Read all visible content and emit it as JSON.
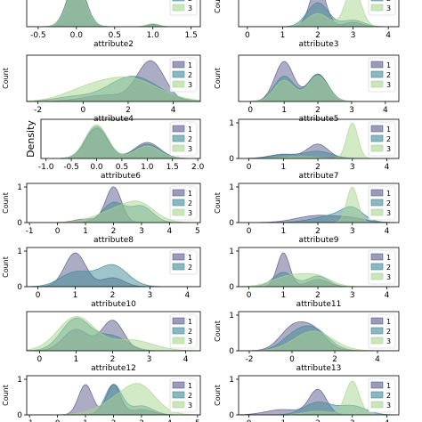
{
  "figure": {
    "colors": [
      "#5a5a8c",
      "#3f8a96",
      "#a8d68f"
    ]
  },
  "chart_data": [
    {
      "type": "area",
      "xlabel": "attribute2",
      "ylabel": "",
      "xticks": [
        "-0.5",
        "0.0",
        "0.5",
        "1.0",
        "1.5"
      ],
      "xlim": [
        -0.65,
        1.62
      ],
      "yticks": [],
      "ylim": [
        0,
        1.1
      ],
      "legend": [
        "1",
        "2",
        "3"
      ],
      "series": [
        {
          "name": "1",
          "peaks": [
            [
              0.0,
              1.05,
              0.12
            ],
            [
              1.0,
              0.05,
              0.08
            ]
          ]
        },
        {
          "name": "2",
          "peaks": [
            [
              0.0,
              1.0,
              0.12
            ],
            [
              1.0,
              0.06,
              0.08
            ]
          ]
        },
        {
          "name": "3",
          "peaks": [
            [
              0.0,
              0.95,
              0.12
            ],
            [
              1.0,
              0.07,
              0.08
            ]
          ]
        }
      ]
    },
    {
      "type": "area",
      "xlabel": "attribute3",
      "ylabel": "Count",
      "xticks": [
        "0",
        "1",
        "2",
        "3",
        "4"
      ],
      "xlim": [
        -0.25,
        4.3
      ],
      "yticks": [],
      "ylim": [
        0,
        1.1
      ],
      "legend": [
        "1",
        "2",
        "3"
      ],
      "series": [
        {
          "name": "1",
          "peaks": [
            [
              2.0,
              0.95,
              0.22
            ],
            [
              3.0,
              0.1,
              0.25
            ]
          ]
        },
        {
          "name": "2",
          "peaks": [
            [
              2.0,
              0.55,
              0.3
            ],
            [
              3.0,
              0.15,
              0.3
            ]
          ]
        },
        {
          "name": "3",
          "peaks": [
            [
              2.0,
              0.3,
              0.3
            ],
            [
              3.0,
              0.9,
              0.22
            ]
          ]
        }
      ]
    },
    {
      "type": "area",
      "xlabel": "attribute4",
      "ylabel": "Count",
      "xticks": [
        "-2",
        "0",
        "2",
        "4"
      ],
      "xlim": [
        -2.5,
        5.2
      ],
      "yticks": [],
      "ylim": [
        0,
        1.1
      ],
      "legend": [
        "1",
        "2",
        "3"
      ],
      "series": [
        {
          "name": "1",
          "peaks": [
            [
              3.0,
              0.95,
              0.6
            ],
            [
              1.0,
              0.15,
              1.0
            ]
          ]
        },
        {
          "name": "2",
          "peaks": [
            [
              2.2,
              0.6,
              1.1
            ],
            [
              -0.5,
              0.1,
              0.8
            ]
          ]
        },
        {
          "name": "3",
          "peaks": [
            [
              2.0,
              0.55,
              1.3
            ],
            [
              0.0,
              0.2,
              1.0
            ]
          ]
        }
      ]
    },
    {
      "type": "area",
      "xlabel": "attribute5",
      "ylabel": "Count",
      "xticks": [
        "0",
        "1",
        "2",
        "3",
        "4"
      ],
      "xlim": [
        -0.35,
        4.4
      ],
      "yticks": [],
      "ylim": [
        0,
        1.1
      ],
      "legend": [
        "1",
        "2",
        "3"
      ],
      "series": [
        {
          "name": "1",
          "peaks": [
            [
              1.0,
              0.95,
              0.28
            ],
            [
              2.0,
              0.65,
              0.3
            ]
          ]
        },
        {
          "name": "2",
          "peaks": [
            [
              1.0,
              0.6,
              0.3
            ],
            [
              2.0,
              0.65,
              0.3
            ]
          ]
        },
        {
          "name": "3",
          "peaks": [
            [
              1.0,
              0.5,
              0.3
            ],
            [
              2.0,
              0.6,
              0.3
            ]
          ]
        }
      ]
    },
    {
      "type": "area",
      "xlabel": "attribute6",
      "ylabel": "Density",
      "xticks": [
        "-1.0",
        "-0.5",
        "0.0",
        "0.5",
        "1.0",
        "1.5",
        "2.0"
      ],
      "xlim": [
        -1.1,
        2.05
      ],
      "yticks": [],
      "ylim": [
        0,
        1.1
      ],
      "legend": [
        "1",
        "2",
        "3"
      ],
      "series": [
        {
          "name": "1",
          "peaks": [
            [
              0.0,
              0.85,
              0.22
            ],
            [
              1.0,
              0.45,
              0.25
            ]
          ]
        },
        {
          "name": "2",
          "peaks": [
            [
              0.0,
              0.9,
              0.22
            ],
            [
              1.0,
              0.4,
              0.25
            ]
          ]
        },
        {
          "name": "3",
          "peaks": [
            [
              0.0,
              0.95,
              0.22
            ],
            [
              1.0,
              0.35,
              0.25
            ]
          ]
        }
      ]
    },
    {
      "type": "area",
      "xlabel": "attribute7",
      "ylabel": "",
      "xticks": [
        "0",
        "1",
        "2",
        "3",
        "4"
      ],
      "xlim": [
        -0.3,
        4.35
      ],
      "yticks": [
        "0",
        "1"
      ],
      "ylim": [
        0,
        1.1
      ],
      "legend": [
        "1",
        "2",
        "3"
      ],
      "series": [
        {
          "name": "1",
          "peaks": [
            [
              2.0,
              0.4,
              0.3
            ],
            [
              1.0,
              0.12,
              0.4
            ]
          ]
        },
        {
          "name": "2",
          "peaks": [
            [
              2.0,
              0.2,
              0.4
            ],
            [
              1.0,
              0.1,
              0.4
            ]
          ]
        },
        {
          "name": "3",
          "peaks": [
            [
              3.0,
              1.0,
              0.16
            ],
            [
              1.5,
              0.05,
              0.5
            ]
          ]
        }
      ]
    },
    {
      "type": "area",
      "xlabel": "attribute8",
      "ylabel": "Count",
      "xticks": [
        "-1",
        "0",
        "1",
        "2",
        "3",
        "4",
        "5"
      ],
      "xlim": [
        -1.1,
        5.1
      ],
      "yticks": [
        "0",
        "1"
      ],
      "ylim": [
        0,
        1.1
      ],
      "legend": [
        "1",
        "2",
        "3"
      ],
      "series": [
        {
          "name": "1",
          "peaks": [
            [
              2.0,
              1.0,
              0.28
            ],
            [
              1.0,
              0.1,
              0.4
            ]
          ]
        },
        {
          "name": "2",
          "peaks": [
            [
              2.0,
              0.55,
              0.4
            ],
            [
              3.0,
              0.45,
              0.4
            ]
          ]
        },
        {
          "name": "3",
          "peaks": [
            [
              2.3,
              0.4,
              0.8
            ],
            [
              3.0,
              0.3,
              0.5
            ]
          ]
        }
      ]
    },
    {
      "type": "area",
      "xlabel": "attribute9",
      "ylabel": "Count",
      "xticks": [
        "0",
        "1",
        "2",
        "3",
        "4"
      ],
      "xlim": [
        -0.3,
        4.35
      ],
      "yticks": [
        "0",
        "1"
      ],
      "ylim": [
        0,
        1.1
      ],
      "legend": [
        "1",
        "2",
        "3"
      ],
      "series": [
        {
          "name": "1",
          "peaks": [
            [
              2.0,
              0.2,
              0.6
            ],
            [
              3.0,
              0.1,
              0.4
            ]
          ]
        },
        {
          "name": "2",
          "peaks": [
            [
              2.5,
              0.2,
              0.6
            ],
            [
              3.0,
              0.3,
              0.3
            ]
          ]
        },
        {
          "name": "3",
          "peaks": [
            [
              3.0,
              1.0,
              0.16
            ]
          ]
        }
      ]
    },
    {
      "type": "area",
      "xlabel": "attribute10",
      "ylabel": "Count",
      "xticks": [
        "0",
        "1",
        "2",
        "3",
        "4"
      ],
      "xlim": [
        -0.3,
        4.35
      ],
      "yticks": [
        "0",
        "1"
      ],
      "ylim": [
        0,
        1.1
      ],
      "legend": [
        "1",
        "2"
      ],
      "series": [
        {
          "name": "1",
          "peaks": [
            [
              1.0,
              0.95,
              0.28
            ],
            [
              2.0,
              0.25,
              0.3
            ]
          ]
        },
        {
          "name": "2",
          "peaks": [
            [
              1.0,
              0.4,
              0.4
            ],
            [
              2.0,
              0.6,
              0.4
            ]
          ]
        }
      ]
    },
    {
      "type": "area",
      "xlabel": "attribute11",
      "ylabel": "",
      "xticks": [
        "0",
        "1",
        "2",
        "3",
        "4"
      ],
      "xlim": [
        -0.3,
        4.35
      ],
      "yticks": [
        "0",
        "1"
      ],
      "ylim": [
        0,
        1.1
      ],
      "legend": [
        "1",
        "2",
        "3"
      ],
      "series": [
        {
          "name": "1",
          "peaks": [
            [
              1.0,
              0.95,
              0.18
            ],
            [
              2.0,
              0.2,
              0.3
            ]
          ]
        },
        {
          "name": "2",
          "peaks": [
            [
              1.0,
              0.4,
              0.3
            ],
            [
              2.0,
              0.3,
              0.3
            ]
          ]
        },
        {
          "name": "3",
          "peaks": [
            [
              1.2,
              0.3,
              0.5
            ],
            [
              2.0,
              0.25,
              0.4
            ]
          ]
        }
      ]
    },
    {
      "type": "area",
      "xlabel": "attribute12",
      "ylabel": "",
      "xticks": [
        "0",
        "1",
        "2",
        "3",
        "4"
      ],
      "xlim": [
        -0.35,
        4.4
      ],
      "yticks": [],
      "ylim": [
        0,
        1.1
      ],
      "legend": [
        "1",
        "2",
        "3"
      ],
      "series": [
        {
          "name": "1",
          "peaks": [
            [
              2.0,
              0.85,
              0.3
            ],
            [
              1.0,
              0.6,
              0.35
            ]
          ]
        },
        {
          "name": "2",
          "peaks": [
            [
              1.0,
              0.9,
              0.4
            ],
            [
              2.0,
              0.4,
              0.4
            ]
          ]
        },
        {
          "name": "3",
          "peaks": [
            [
              1.0,
              0.95,
              0.5
            ],
            [
              2.5,
              0.3,
              0.6
            ]
          ]
        }
      ]
    },
    {
      "type": "area",
      "xlabel": "attribute13",
      "ylabel": "Count",
      "xticks": [
        "-2",
        "0",
        "2",
        "4"
      ],
      "xlim": [
        -2.5,
        5.0
      ],
      "yticks": [
        "0",
        "1"
      ],
      "ylim": [
        0,
        1.1
      ],
      "legend": [
        "1",
        "2",
        "3"
      ],
      "series": [
        {
          "name": "1",
          "peaks": [
            [
              0.0,
              0.6,
              0.6
            ],
            [
              1.0,
              0.55,
              0.6
            ]
          ]
        },
        {
          "name": "2",
          "peaks": [
            [
              1.0,
              0.6,
              0.7
            ],
            [
              0.0,
              0.3,
              0.6
            ]
          ]
        },
        {
          "name": "3",
          "peaks": [
            [
              1.0,
              0.55,
              0.9
            ]
          ]
        }
      ]
    },
    {
      "type": "area",
      "xlabel": "",
      "ylabel": "Count",
      "xticks": [
        "-1",
        "0",
        "1",
        "2",
        "3",
        "4",
        "5"
      ],
      "xlim": [
        -1.1,
        5.1
      ],
      "yticks": [
        "0",
        "1"
      ],
      "ylim": [
        0,
        1.1
      ],
      "legend": [
        "1",
        "2",
        "3"
      ],
      "series": [
        {
          "name": "1",
          "peaks": [
            [
              1.0,
              0.85,
              0.25
            ],
            [
              2.0,
              0.85,
              0.25
            ],
            [
              3.0,
              0.15,
              0.4
            ]
          ]
        },
        {
          "name": "2",
          "peaks": [
            [
              2.0,
              0.85,
              0.3
            ],
            [
              3.0,
              0.25,
              0.4
            ]
          ]
        },
        {
          "name": "3",
          "peaks": [
            [
              2.5,
              0.55,
              0.8
            ],
            [
              3.0,
              0.4,
              0.5
            ]
          ]
        }
      ]
    },
    {
      "type": "area",
      "xlabel": "",
      "ylabel": "Count",
      "xticks": [
        "0",
        "1",
        "2",
        "3",
        "4"
      ],
      "xlim": [
        -0.3,
        4.35
      ],
      "yticks": [
        "0",
        "1"
      ],
      "ylim": [
        0,
        1.1
      ],
      "legend": [
        "1",
        "2",
        "3"
      ],
      "series": [
        {
          "name": "1",
          "peaks": [
            [
              2.0,
              0.7,
              0.25
            ],
            [
              1.0,
              0.15,
              0.5
            ]
          ]
        },
        {
          "name": "2",
          "peaks": [
            [
              2.0,
              0.35,
              0.4
            ],
            [
              3.0,
              0.25,
              0.4
            ]
          ]
        },
        {
          "name": "3",
          "peaks": [
            [
              3.0,
              0.95,
              0.2
            ],
            [
              2.0,
              0.1,
              0.4
            ]
          ]
        }
      ]
    }
  ]
}
